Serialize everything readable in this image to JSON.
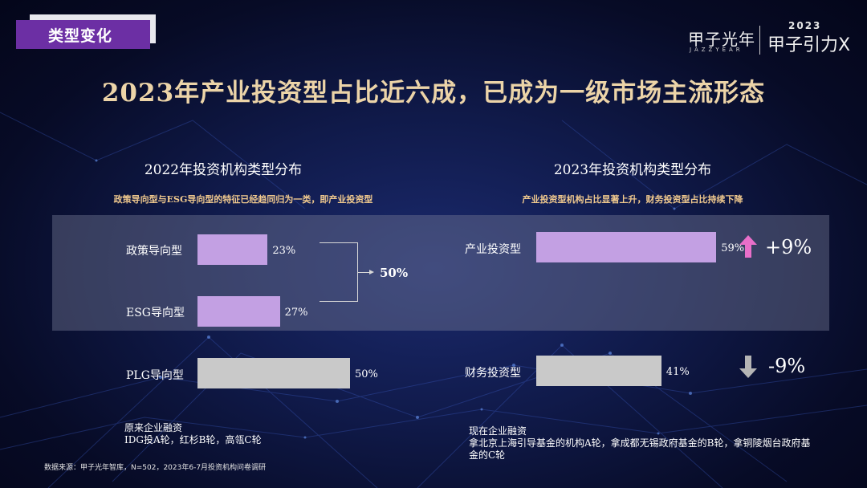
{
  "tag": {
    "label": "类型变化"
  },
  "logo": {
    "brand": "甲子光年",
    "brand_en": "JAZZYEAR",
    "event_year": "2023",
    "event_name": "甲子引力X"
  },
  "title": "2023年产业投资型占比近六成，已成为一级市场主流形态",
  "colors": {
    "accent_purple": "#c3a0e3",
    "neutral_gray": "#c9c9c9",
    "title_gold": "#ecd4a8",
    "subtitle_orange": "#f0c98e",
    "up_arrow": "#e86fc9",
    "down_arrow": "#b5b5b5"
  },
  "chart_data": [
    {
      "type": "bar",
      "title": "2022年投资机构类型分布",
      "subtitle": "政策导向型与ESG导向型的特征已经趋同归为一类，即产业投资型",
      "orientation": "horizontal",
      "categories": [
        "政策导向型",
        "ESG导向型",
        "PLG导向型"
      ],
      "values": [
        23,
        27,
        50
      ],
      "value_labels": [
        "23%",
        "27%",
        "50%"
      ],
      "group_annotation": {
        "members": [
          "政策导向型",
          "ESG导向型"
        ],
        "label": "50%"
      },
      "xlim": [
        0,
        100
      ]
    },
    {
      "type": "bar",
      "title": "2023年投资机构类型分布",
      "subtitle": "产业投资型机构占比显著上升，财务投资型占比持续下降",
      "orientation": "horizontal",
      "categories": [
        "产业投资型",
        "财务投资型"
      ],
      "values": [
        59,
        41
      ],
      "value_labels": [
        "59%",
        "41%"
      ],
      "changes": [
        {
          "label": "+9%",
          "direction": "up",
          "icon": "up-arrow-icon"
        },
        {
          "label": "-9%",
          "direction": "down",
          "icon": "down-arrow-icon"
        }
      ],
      "xlim": [
        0,
        100
      ]
    }
  ],
  "notes": {
    "left": {
      "line1": "原来企业融资",
      "line2": "IDG投A轮，红杉B轮，高瓴C轮"
    },
    "right": {
      "line1": "现在企业融资",
      "line2": "拿北京上海引导基金的机构A轮，拿成都无锡政府基金的B轮，拿铜陵烟台政府基金的C轮"
    }
  },
  "source": "数据来源：甲子光年智库，N=502，2023年6-7月投资机构问卷调研"
}
